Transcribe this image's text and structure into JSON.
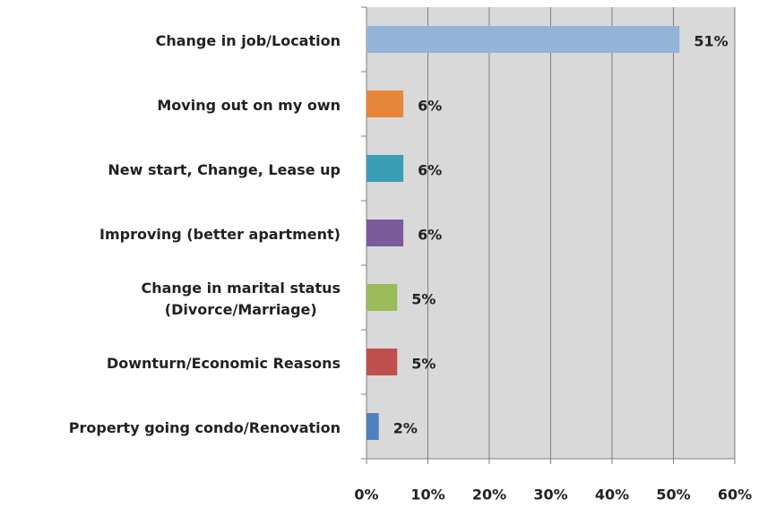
{
  "chart_data": {
    "type": "bar",
    "orientation": "horizontal",
    "categories": [
      "Change in job/Location",
      "Moving out on my own",
      "New start, Change, Lease up",
      "Improving (better apartment)",
      "Change in marital status\n(Divorce/Marriage)",
      "Downturn/Economic Reasons",
      "Property going condo/Renovation"
    ],
    "values": [
      51,
      6,
      6,
      6,
      5,
      5,
      2
    ],
    "value_labels": [
      "51%",
      "6%",
      "6%",
      "6%",
      "5%",
      "5%",
      "2%"
    ],
    "colors": [
      "#95b3d7",
      "#e6863a",
      "#3a9db6",
      "#7b5a9a",
      "#9bbb59",
      "#c0504d",
      "#4f81bd"
    ],
    "xlim": [
      0,
      60
    ],
    "xticks": [
      {
        "value": 0,
        "label": "0%"
      },
      {
        "value": 10,
        "label": "10%"
      },
      {
        "value": 20,
        "label": "20%"
      },
      {
        "value": 30,
        "label": "30%"
      },
      {
        "value": 40,
        "label": "40%"
      },
      {
        "value": 50,
        "label": "50%"
      },
      {
        "value": 60,
        "label": "60%"
      }
    ],
    "grid": true
  }
}
